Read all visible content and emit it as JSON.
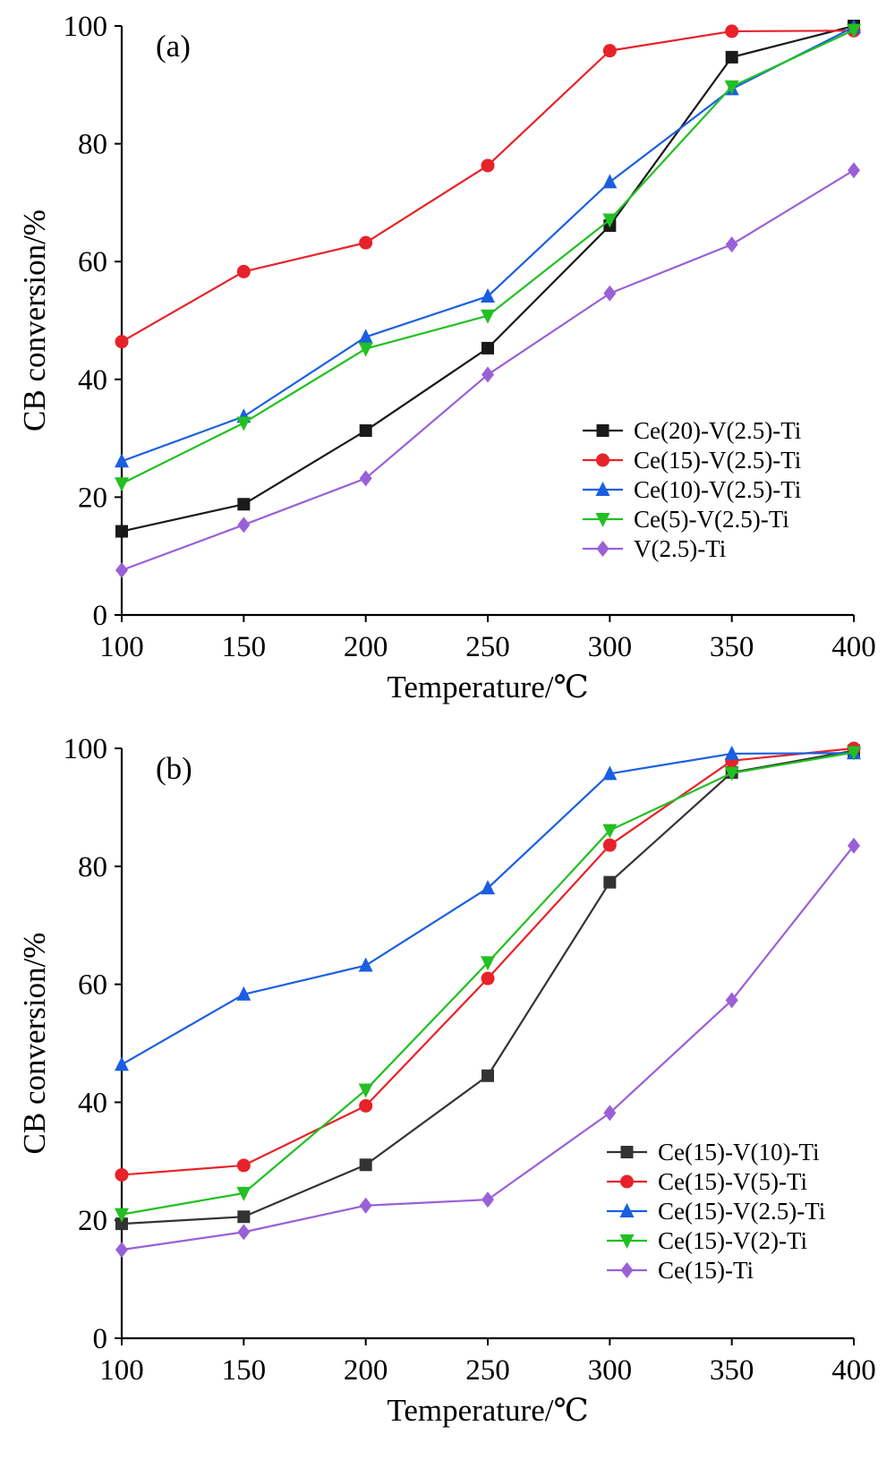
{
  "chart_data": [
    {
      "type": "line",
      "panel_label": "(a)",
      "xlabel": "Temperature/℃",
      "ylabel": "CB conversion/%",
      "xlim": [
        100,
        400
      ],
      "ylim": [
        0,
        100
      ],
      "xticks": [
        100,
        150,
        200,
        250,
        300,
        350,
        400
      ],
      "yticks": [
        0,
        20,
        40,
        60,
        80,
        100
      ],
      "grid": false,
      "legend_position": "lower-right",
      "x": [
        100,
        150,
        200,
        250,
        300,
        350,
        400
      ],
      "series": [
        {
          "name": "Ce(20)-V(2.5)-Ti",
          "color": "#1a1a1a",
          "marker": "square",
          "values": [
            14.2,
            18.8,
            31.3,
            45.3,
            66.1,
            94.7,
            100
          ]
        },
        {
          "name": "Ce(15)-V(2.5)-Ti",
          "color": "#e8222a",
          "marker": "circle",
          "values": [
            46.4,
            58.3,
            63.2,
            76.3,
            95.8,
            99.1,
            99.2
          ]
        },
        {
          "name": "Ce(10)-V(2.5)-Ti",
          "color": "#1a5fe0",
          "marker": "triangle-up",
          "values": [
            26.1,
            33.7,
            47.2,
            54.1,
            73.5,
            89.3,
            99.8
          ]
        },
        {
          "name": "Ce(5)-V(2.5)-Ti",
          "color": "#22c022",
          "marker": "triangle-down",
          "values": [
            22.3,
            32.6,
            45.2,
            50.8,
            67.1,
            89.7,
            99.3
          ]
        },
        {
          "name": "V(2.5)-Ti",
          "color": "#9a60d8",
          "marker": "diamond",
          "values": [
            7.6,
            15.3,
            23.2,
            40.8,
            54.6,
            62.9,
            75.5
          ]
        }
      ]
    },
    {
      "type": "line",
      "panel_label": "(b)",
      "xlabel": "Temperature/℃",
      "ylabel": "CB conversion/%",
      "xlim": [
        100,
        400
      ],
      "ylim": [
        0,
        100
      ],
      "xticks": [
        100,
        150,
        200,
        250,
        300,
        350,
        400
      ],
      "yticks": [
        0,
        20,
        40,
        60,
        80,
        100
      ],
      "grid": false,
      "legend_position": "lower-right",
      "x": [
        100,
        150,
        200,
        250,
        300,
        350,
        400
      ],
      "series": [
        {
          "name": "Ce(15)-V(10)-Ti",
          "color": "#333333",
          "marker": "square",
          "values": [
            19.4,
            20.6,
            29.4,
            44.5,
            77.3,
            95.9,
            99.6
          ]
        },
        {
          "name": "Ce(15)-V(5)-Ti",
          "color": "#e8222a",
          "marker": "circle",
          "values": [
            27.7,
            29.3,
            39.4,
            61.0,
            83.6,
            97.9,
            100
          ]
        },
        {
          "name": "Ce(15)-V(2.5)-Ti",
          "color": "#1a5fe0",
          "marker": "triangle-up",
          "values": [
            46.4,
            58.3,
            63.2,
            76.3,
            95.7,
            99.1,
            99.2
          ]
        },
        {
          "name": "Ce(15)-V(2)-Ti",
          "color": "#22c022",
          "marker": "triangle-down",
          "values": [
            21.0,
            24.6,
            42.1,
            63.7,
            86.1,
            95.8,
            99.3
          ]
        },
        {
          "name": "Ce(15)-Ti",
          "color": "#9a60d8",
          "marker": "diamond",
          "values": [
            15.0,
            18.0,
            22.5,
            23.5,
            38.2,
            57.3,
            83.5
          ]
        }
      ]
    }
  ]
}
